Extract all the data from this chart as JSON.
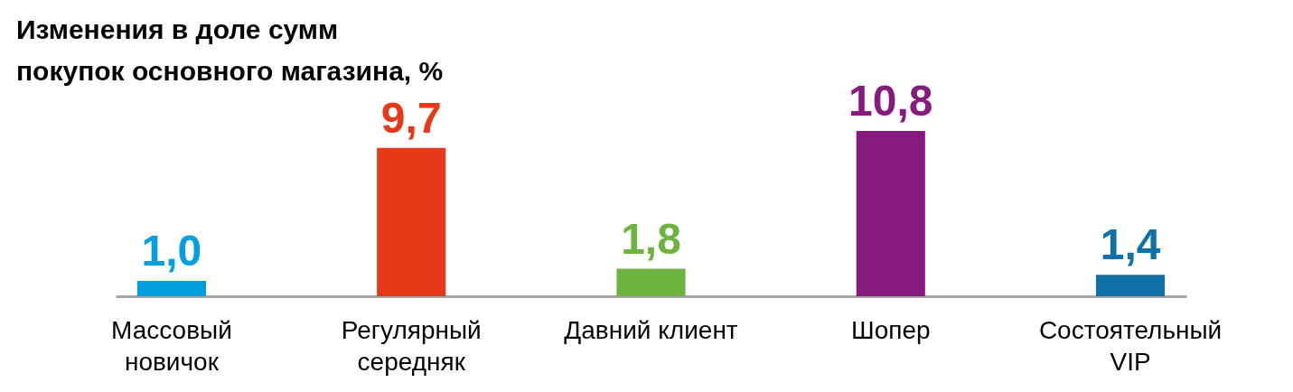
{
  "chart_data": {
    "type": "bar",
    "title": "Изменения в доле сумм\nпокупок основного магазина, %",
    "categories": [
      "Массовый новичок",
      "Регулярный середняк",
      "Давний клиент",
      "Шопер",
      "Состоятельный VIP"
    ],
    "values": [
      1.0,
      9.7,
      1.8,
      10.8,
      1.4
    ],
    "colors": [
      "#009fdf",
      "#e63917",
      "#6db33f",
      "#861a7e",
      "#1070a8"
    ],
    "value_labels": [
      "1,0",
      "9,7",
      "1,8",
      "10,8",
      "1,4"
    ],
    "grid": false
  }
}
